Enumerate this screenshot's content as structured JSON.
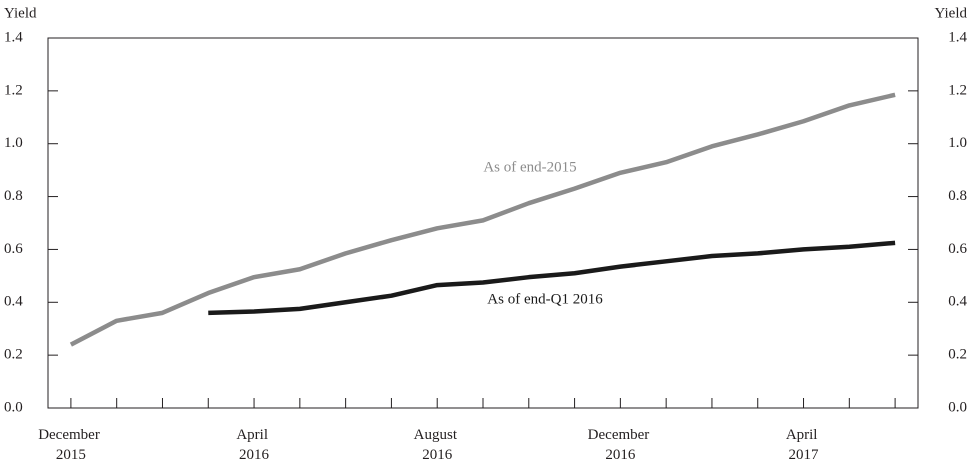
{
  "chart_data": {
    "type": "line",
    "y_label": "Yield",
    "categories": [
      "December 2015",
      null,
      null,
      null,
      "April 2016",
      null,
      null,
      null,
      "August 2016",
      null,
      null,
      null,
      "December 2016",
      null,
      null,
      null,
      "April 2017",
      null,
      null
    ],
    "series": [
      {
        "name": "As of end-2015",
        "color": "#8c8c8c",
        "values": [
          0.24,
          0.33,
          0.36,
          0.435,
          0.495,
          0.525,
          0.585,
          0.635,
          0.68,
          0.71,
          0.775,
          0.83,
          0.89,
          0.93,
          0.99,
          1.035,
          1.085,
          1.145,
          1.185
        ]
      },
      {
        "name": "As of end-Q1 2016",
        "color": "#1a1a1a",
        "values": [
          null,
          null,
          null,
          0.36,
          0.365,
          0.375,
          0.4,
          0.425,
          0.465,
          0.475,
          0.495,
          0.51,
          0.535,
          0.555,
          0.575,
          0.585,
          0.6,
          0.61,
          0.625
        ]
      }
    ],
    "ylim": [
      0,
      1.4
    ],
    "yticks": [
      {
        "value": 0,
        "label": "0.0"
      },
      0.2,
      0.4,
      0.6,
      0.8,
      {
        "value": 1,
        "label": "1.0"
      },
      1.2,
      1.4
    ],
    "y2lim": [
      0,
      1.4
    ],
    "y2ticks": [
      {
        "value": 0,
        "label": "0.0"
      },
      0.2,
      0.4,
      0.6,
      0.8,
      {
        "value": 1,
        "label": "1.0"
      },
      1.2,
      1.4
    ]
  }
}
